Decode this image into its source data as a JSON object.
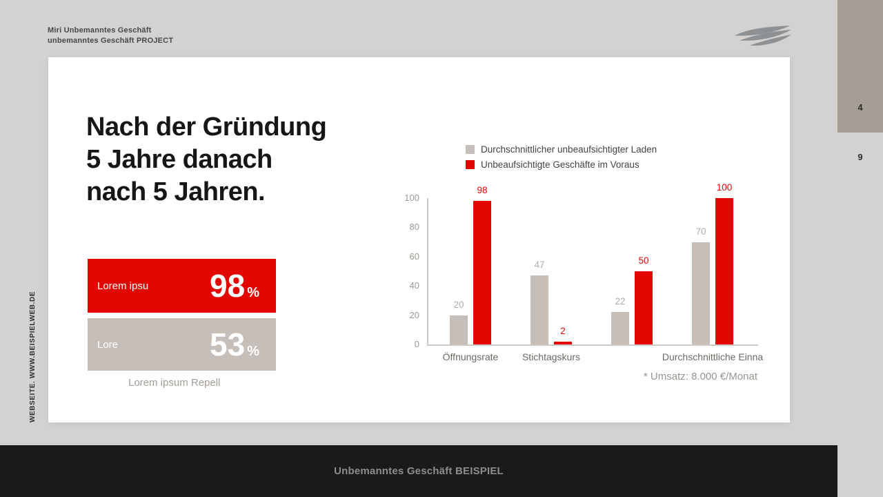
{
  "header": {
    "line1": "Miri Unbemanntes Geschäft",
    "line2": "unbemanntes Geschäft PROJECT"
  },
  "sidebar": {
    "top_number": "4",
    "bottom_number": "9"
  },
  "side_text": "WEBSEITE. WWW.BEISPIELWEB.DE",
  "slide": {
    "title_lines": [
      "Nach der Gründung",
      "5 Jahre danach",
      "nach 5 Jahren."
    ],
    "stats": [
      {
        "label": "Lorem ipsu",
        "value": "98",
        "unit": "%",
        "color": "#e10600"
      },
      {
        "label": "Lore",
        "value": "53",
        "unit": "%",
        "color": "#c6beb8"
      }
    ],
    "caption": "Lorem ipsum Repell",
    "footnote": "* Umsatz: 8.000 €/Monat"
  },
  "footer": {
    "label": "Unbemanntes Geschäft BEISPIEL"
  },
  "chart_data": {
    "type": "bar",
    "title": "",
    "categories": [
      "Öffnungsrate",
      "Stichtagskurs",
      "",
      "Durchschnittliche Einna"
    ],
    "series": [
      {
        "name": "Durchschnittlicher unbeaufsichtigter Laden",
        "color": "#c6beb8",
        "label_color": "#b3aca6",
        "values": [
          20,
          47,
          22,
          70
        ]
      },
      {
        "name": "Unbeaufsichtigte Geschäfte im Voraus",
        "color": "#e10600",
        "label_color": "#e10600",
        "values": [
          98,
          2,
          50,
          100
        ]
      }
    ],
    "xlabel": "",
    "ylabel": "",
    "ylim": [
      0,
      100
    ],
    "yticks": [
      0,
      20,
      40,
      60,
      80,
      100
    ],
    "legend_position": "top",
    "grid": false
  },
  "colors": {
    "accent_red": "#e10600",
    "neutral_gray": "#c6beb8",
    "page_bg": "#d3d2d0",
    "strip_bg": "#a59e95",
    "footer_bg": "#1a1a1a"
  }
}
